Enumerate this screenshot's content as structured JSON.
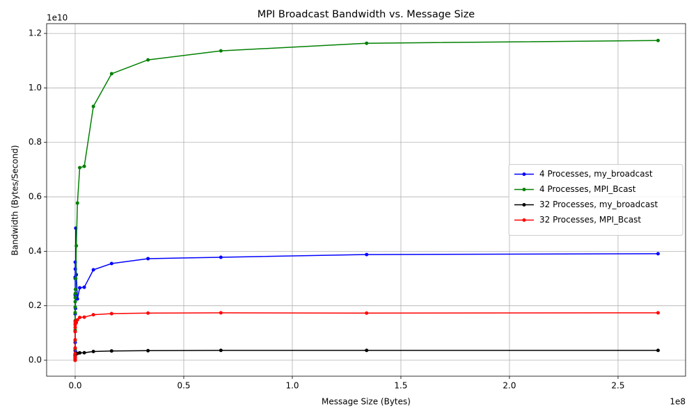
{
  "chart_data": {
    "type": "line",
    "title": "MPI Broadcast Bandwidth vs. Message Size",
    "x_label": "Message Size (Bytes)",
    "y_label": "Bandwidth (Bytes/Second)",
    "x_offset_label": "1e8",
    "y_offset_label": "1e10",
    "x": [
      1,
      2,
      4,
      8,
      16,
      32,
      64,
      128,
      256,
      512,
      1024,
      2048,
      4096,
      8192,
      16384,
      32768,
      65536,
      131072,
      262144,
      524288,
      1048576,
      2097152,
      4194304,
      8388608,
      16777216,
      33554432,
      67108864,
      134217728,
      268435456
    ],
    "series": [
      {
        "name": "4 Processes, my_broadcast",
        "color": "#0000ff",
        "values": [
          1500000,
          3000000,
          6000000,
          12000000,
          24000000,
          48000000,
          95000000,
          180000000,
          350000000,
          650000000,
          1050000000,
          1700000000,
          2400000000,
          3050000000,
          3000000000,
          3600000000,
          3350000000,
          1900000000,
          4850000000,
          3140000000,
          2250000000,
          2660000000,
          2680000000,
          3320000000,
          3550000000,
          3730000000,
          3780000000,
          3880000000,
          3910000000
        ]
      },
      {
        "name": "4 Processes, MPI_Bcast",
        "color": "#008000",
        "values": [
          2000000,
          4000000,
          8000000,
          16000000,
          32000000,
          63000000,
          120000000,
          230000000,
          420000000,
          730000000,
          1100000000,
          1450000000,
          1750000000,
          1950000000,
          2150000000,
          2300000000,
          2450000000,
          2600000000,
          3000000000,
          4200000000,
          5770000000,
          7070000000,
          7120000000,
          9320000000,
          10520000000,
          11030000000,
          11360000000,
          11640000000,
          11740000000
        ]
      },
      {
        "name": "32 Processes, my_broadcast",
        "color": "#000000",
        "values": [
          120000,
          240000,
          500000,
          1000000,
          2000000,
          4000000,
          8000000,
          15000000,
          30000000,
          55000000,
          90000000,
          130000000,
          170000000,
          200000000,
          220000000,
          230000000,
          240000000,
          245000000,
          250000000,
          255000000,
          250000000,
          270000000,
          275000000,
          320000000,
          340000000,
          350000000,
          360000000,
          360000000,
          362000000
        ]
      },
      {
        "name": "32 Processes, MPI_Bcast",
        "color": "#ff0000",
        "values": [
          500000,
          1000000,
          2000000,
          4000000,
          8000000,
          16000000,
          32000000,
          64000000,
          125000000,
          240000000,
          450000000,
          750000000,
          1050000000,
          1200000000,
          1300000000,
          1350000000,
          1400000000,
          1420000000,
          1440000000,
          1380000000,
          1480000000,
          1570000000,
          1580000000,
          1670000000,
          1710000000,
          1730000000,
          1740000000,
          1730000000,
          1740000000
        ]
      }
    ],
    "xlim": [
      -13140000,
      281100000
    ],
    "ylim": [
      -587000000,
      12360000000
    ],
    "xticks": [
      {
        "value": 0,
        "label": "0.0"
      },
      {
        "value": 50000000,
        "label": "0.5"
      },
      {
        "value": 100000000,
        "label": "1.0"
      },
      {
        "value": 150000000,
        "label": "1.5"
      },
      {
        "value": 200000000,
        "label": "2.0"
      },
      {
        "value": 250000000,
        "label": "2.5"
      }
    ],
    "yticks": [
      {
        "value": 0,
        "label": "0.0"
      },
      {
        "value": 2000000000,
        "label": "0.2"
      },
      {
        "value": 4000000000,
        "label": "0.4"
      },
      {
        "value": 6000000000,
        "label": "0.6"
      },
      {
        "value": 8000000000,
        "label": "0.8"
      },
      {
        "value": 10000000000,
        "label": "1.0"
      },
      {
        "value": 12000000000,
        "label": "1.2"
      }
    ],
    "grid": true,
    "legend": "center right"
  }
}
